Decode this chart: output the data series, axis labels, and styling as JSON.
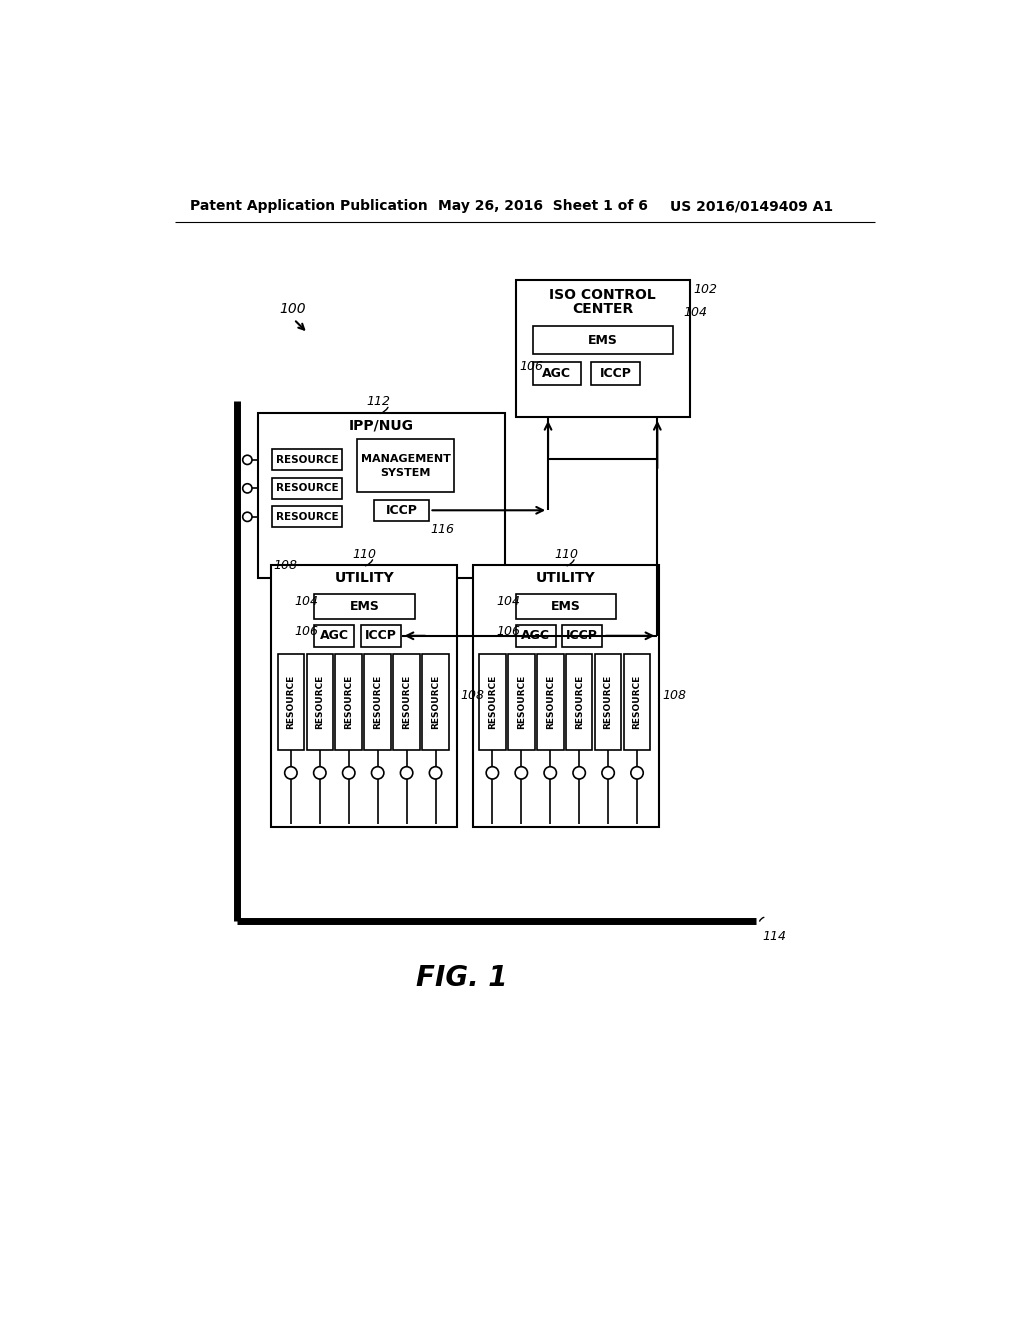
{
  "bg_color": "#ffffff",
  "header_left": "Patent Application Publication",
  "header_center": "May 26, 2016  Sheet 1 of 6",
  "header_right": "US 2016/0149409 A1",
  "fig_label": "FIG. 1"
}
